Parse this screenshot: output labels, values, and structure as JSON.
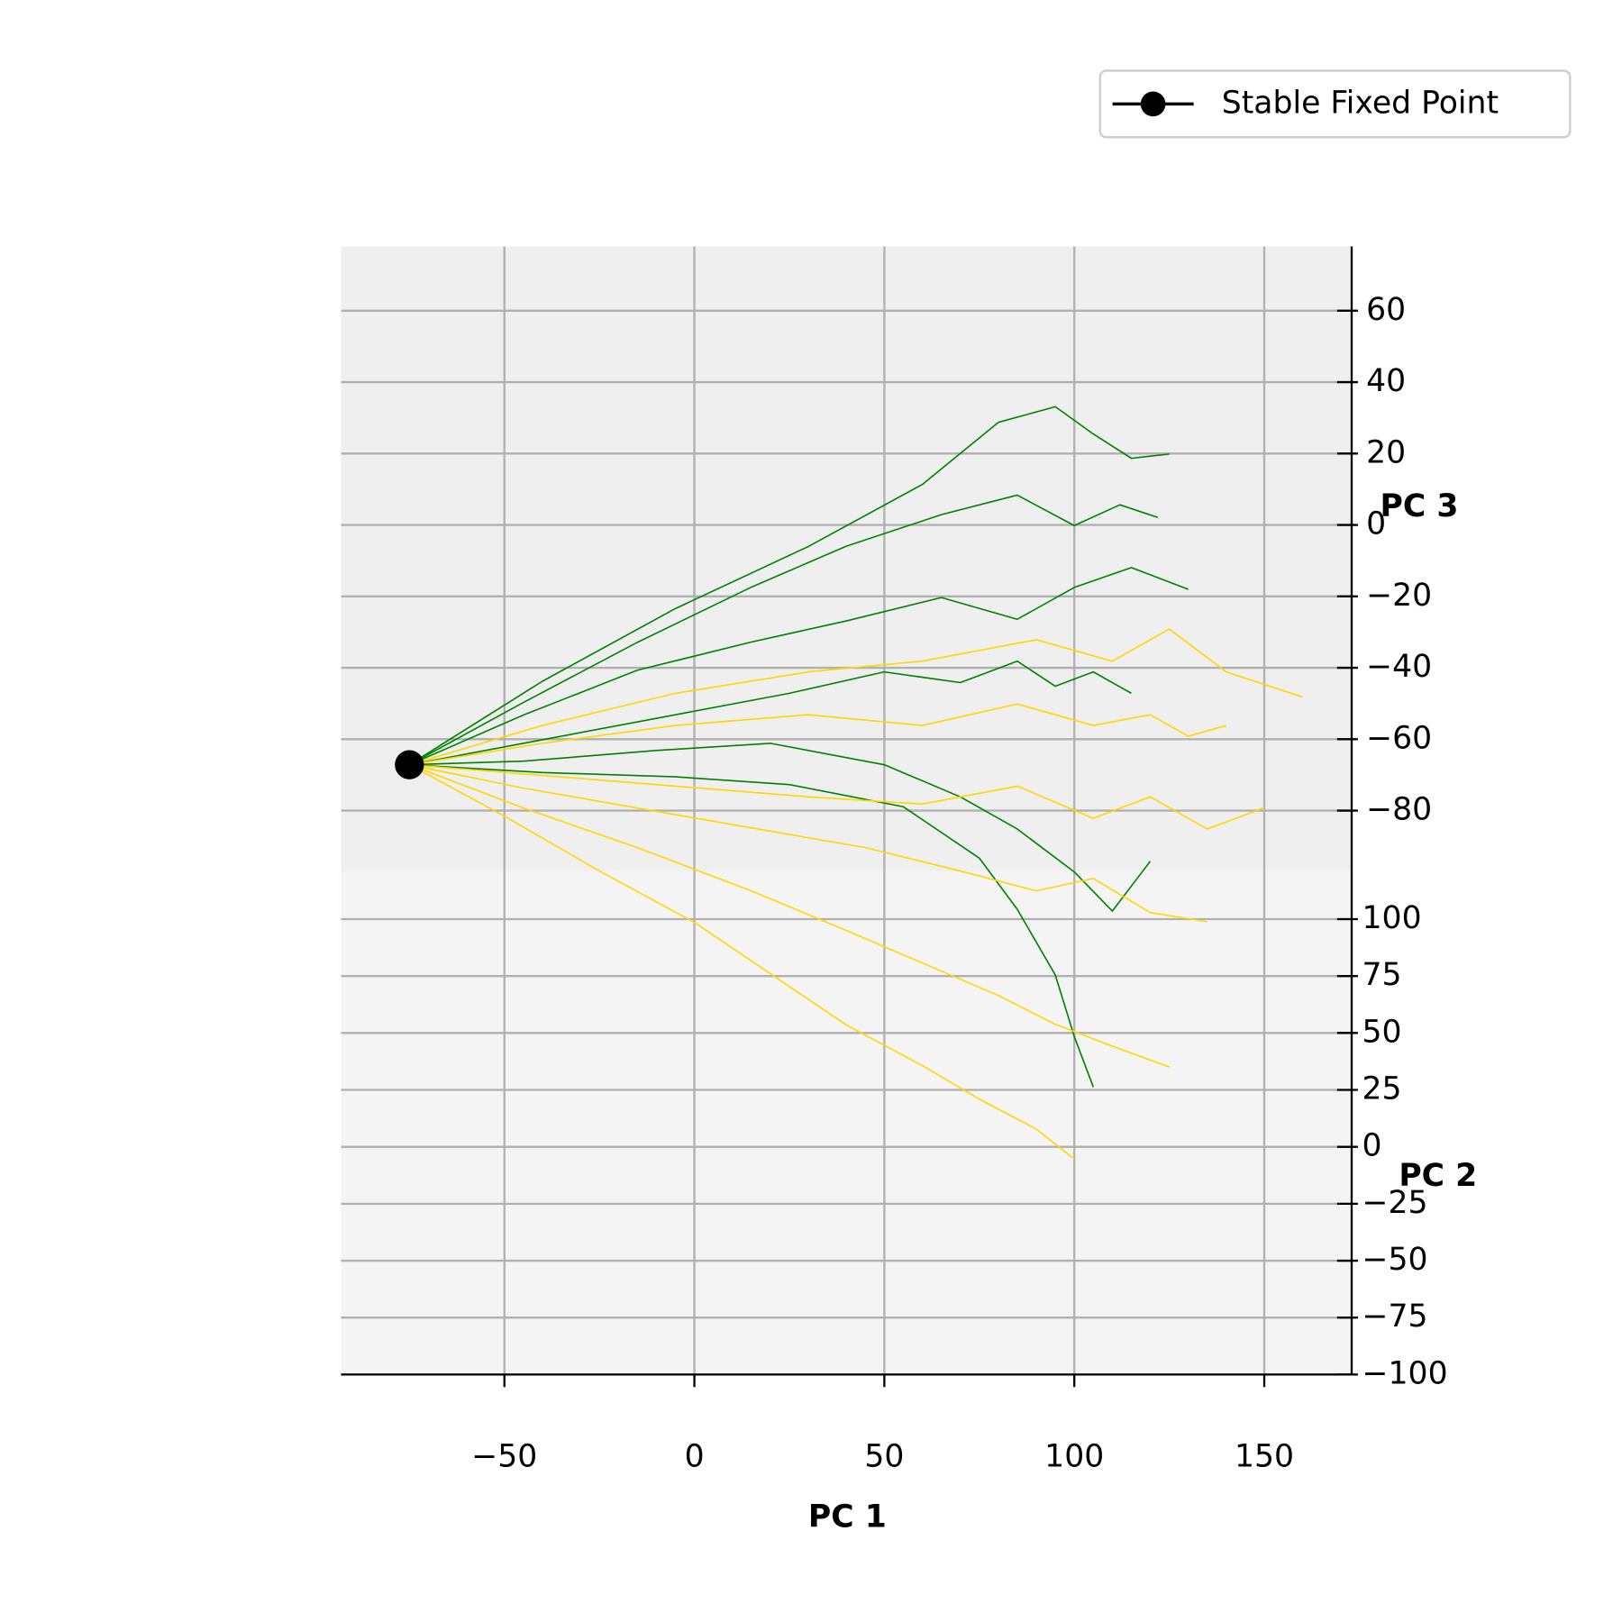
{
  "chart_data": {
    "type": "line3d",
    "xlabel": "PC 1",
    "ylabel": "PC 2",
    "zlabel": "PC 3",
    "xlim": [
      -93,
      173
    ],
    "ylim": [
      -100,
      121
    ],
    "zlim": [
      -97,
      78
    ],
    "xticks": [
      {
        "value": -50,
        "label": "−50"
      },
      0,
      50,
      100,
      150
    ],
    "yticks": [
      {
        "value": -100,
        "label": "−100"
      },
      {
        "value": -75,
        "label": "−75"
      },
      {
        "value": -50,
        "label": "−50"
      },
      {
        "value": -25,
        "label": "−25"
      },
      0,
      25,
      50,
      75,
      100
    ],
    "zticks": [
      {
        "value": -80,
        "label": "−80"
      },
      {
        "value": -60,
        "label": "−60"
      },
      {
        "value": -40,
        "label": "−40"
      },
      {
        "value": -20,
        "label": "−20"
      },
      0,
      20,
      40,
      60
    ],
    "grid": true,
    "legend": "upper right",
    "series": [
      {
        "color": "#008000",
        "x": [
          -75,
          -40,
          -5,
          30,
          60,
          80,
          95,
          105,
          115,
          125
        ],
        "y": [
          0,
          10,
          20,
          30,
          40,
          50,
          60,
          70,
          75,
          80
        ],
        "z": [
          10,
          27,
          41,
          52,
          63,
          74,
          72,
          58,
          48,
          46
        ]
      },
      {
        "color": "#008000",
        "x": [
          -75,
          -45,
          -15,
          15,
          40,
          65,
          85,
          100,
          112,
          122
        ],
        "y": [
          0,
          7,
          13,
          20,
          27,
          33,
          40,
          47,
          53,
          60
        ],
        "z": [
          10,
          23,
          36,
          47,
          54,
          59,
          60,
          47,
          49,
          41
        ]
      },
      {
        "color": "#008000",
        "x": [
          -75,
          -40,
          -5,
          25,
          50,
          70,
          85,
          95,
          105,
          115
        ],
        "y": [
          0,
          0,
          0,
          0,
          0,
          0,
          0,
          0,
          0,
          0
        ],
        "z": [
          10,
          17,
          24,
          30,
          36,
          33,
          39,
          32,
          36,
          30
        ]
      },
      {
        "color": "#008000",
        "x": [
          -75,
          -40,
          -5,
          25,
          55,
          75,
          85,
          95,
          100,
          105
        ],
        "y": [
          0,
          -5,
          -10,
          -15,
          -20,
          -30,
          -40,
          -50,
          -55,
          -60
        ],
        "z": [
          10,
          11,
          13,
          14,
          11,
          3,
          -5,
          -17,
          -31,
          -42
        ]
      },
      {
        "color": "#008000",
        "x": [
          -75,
          -45,
          -10,
          20,
          50,
          70,
          85,
          100,
          110,
          120
        ],
        "y": [
          0,
          0,
          0,
          0,
          0,
          0,
          0,
          0,
          0,
          0
        ],
        "z": [
          10,
          11,
          14,
          16,
          10,
          1,
          -8,
          -20,
          -31,
          -17
        ]
      },
      {
        "color": "#008000",
        "x": [
          -75,
          -45,
          -15,
          15,
          40,
          65,
          85,
          100,
          115,
          130
        ],
        "y": [
          0,
          3,
          7,
          10,
          13,
          17,
          20,
          23,
          27,
          30
        ],
        "z": [
          10,
          22,
          32,
          38,
          42,
          46,
          38,
          45,
          48,
          40
        ]
      },
      {
        "color": "#ffd700",
        "x": [
          -75,
          -40,
          -5,
          30,
          60,
          90,
          110,
          125,
          140,
          160
        ],
        "y": [
          0,
          0,
          0,
          0,
          0,
          0,
          0,
          0,
          0,
          0
        ],
        "z": [
          10,
          21,
          30,
          36,
          39,
          45,
          39,
          48,
          36,
          29
        ]
      },
      {
        "color": "#ffd700",
        "x": [
          -75,
          -40,
          -5,
          30,
          60,
          85,
          105,
          120,
          135,
          150
        ],
        "y": [
          0,
          0,
          0,
          0,
          0,
          0,
          0,
          0,
          0,
          0
        ],
        "z": [
          10,
          7,
          4,
          1,
          -1,
          4,
          -5,
          1,
          -8,
          -2
        ]
      },
      {
        "color": "#ffd700",
        "x": [
          -75,
          -50,
          -25,
          0,
          20,
          40,
          60,
          75,
          90,
          100
        ],
        "y": [
          0,
          -10,
          -20,
          -30,
          -40,
          -50,
          -60,
          -70,
          -80,
          -90
        ],
        "z": [
          10,
          2,
          -7,
          -15,
          -23,
          -31,
          -36,
          -39,
          -41,
          -43
        ]
      },
      {
        "color": "#ffd700",
        "x": [
          -75,
          -45,
          -15,
          15,
          40,
          60,
          80,
          95,
          110,
          125
        ],
        "y": [
          0,
          -8,
          -16,
          -24,
          -32,
          -40,
          -48,
          -56,
          -64,
          -70
        ],
        "z": [
          10,
          3,
          -3,
          -10,
          -16,
          -20,
          -24,
          -27,
          -28,
          -30
        ]
      },
      {
        "color": "#ffd700",
        "x": [
          -75,
          -45,
          -15,
          15,
          45,
          70,
          90,
          105,
          120,
          135
        ],
        "y": [
          0,
          -4,
          -8,
          -12,
          -16,
          -20,
          -24,
          -28,
          -32,
          -36
        ],
        "z": [
          10,
          6,
          3,
          0,
          -3,
          -7,
          -10,
          -4,
          -11,
          -11
        ]
      },
      {
        "color": "#ffd700",
        "x": [
          -75,
          -40,
          -5,
          30,
          60,
          85,
          105,
          120,
          130,
          140
        ],
        "y": [
          0,
          0,
          0,
          0,
          0,
          0,
          0,
          0,
          0,
          0
        ],
        "z": [
          10,
          16,
          21,
          24,
          21,
          27,
          21,
          24,
          18,
          21
        ]
      },
      {
        "name": "Stable Fixed Point",
        "color": "#000000",
        "marker": "o",
        "x": [
          -75
        ],
        "y": [
          0
        ],
        "z": [
          10
        ]
      }
    ]
  }
}
